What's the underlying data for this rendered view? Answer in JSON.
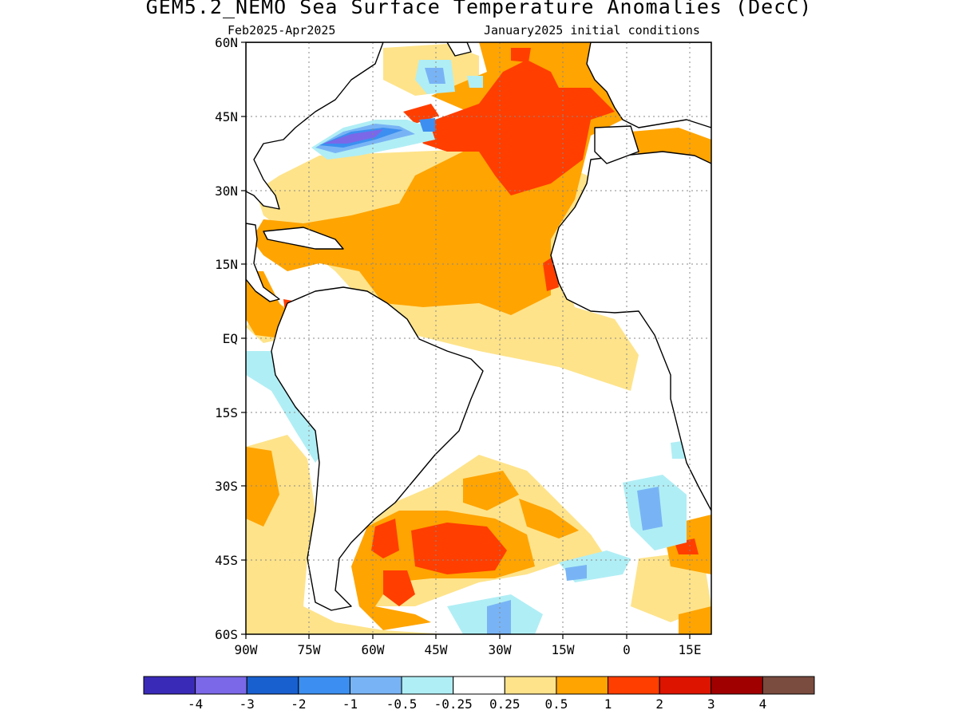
{
  "title": "GEM5.2_NEMO Sea Surface Temperature Anomalies (DecC)",
  "subtitle_left": "Feb2025-Apr2025",
  "subtitle_right": "January2025 initial conditions",
  "map": {
    "lon_range": [
      -90,
      20
    ],
    "lat_range": [
      -60,
      60
    ],
    "lat_ticks": [
      "60N",
      "45N",
      "30N",
      "15N",
      "EQ",
      "15S",
      "30S",
      "45S",
      "60S"
    ],
    "lon_ticks": [
      "90W",
      "75W",
      "60W",
      "45W",
      "30W",
      "15W",
      "0",
      "15E"
    ],
    "gridlines": true
  },
  "colorbar": {
    "colors": [
      "#3a2ab8",
      "#7a68e8",
      "#1860d0",
      "#3c8ff0",
      "#78b4f5",
      "#b0eef5",
      "#ffffff",
      "#fee38a",
      "#ffa400",
      "#ff3e00",
      "#dc1400",
      "#a00000",
      "#7a4b3f"
    ],
    "labels": [
      "-4",
      "-3",
      "-2",
      "-1",
      "-0.5",
      "-0.25",
      "0.25",
      "0.5",
      "1",
      "2",
      "3",
      "4"
    ]
  }
}
